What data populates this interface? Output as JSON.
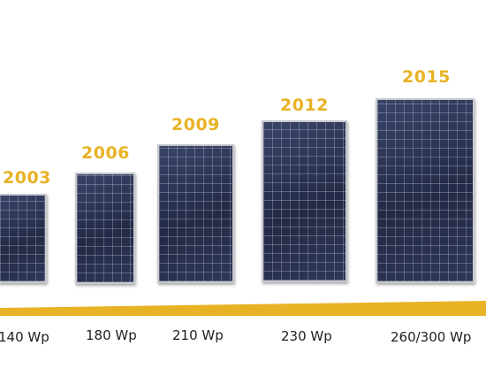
{
  "colors": {
    "accent": "#E8B225",
    "panel": "#2c3354",
    "frame": "#c6c9cd",
    "label": "#1f1f1f"
  },
  "panels": [
    {
      "year": "2003",
      "power": "140 Wp"
    },
    {
      "year": "2006",
      "power": "180 Wp"
    },
    {
      "year": "2009",
      "power": "210 Wp"
    },
    {
      "year": "2012",
      "power": "230 Wp"
    },
    {
      "year": "2015",
      "power": "260/300 Wp"
    }
  ]
}
